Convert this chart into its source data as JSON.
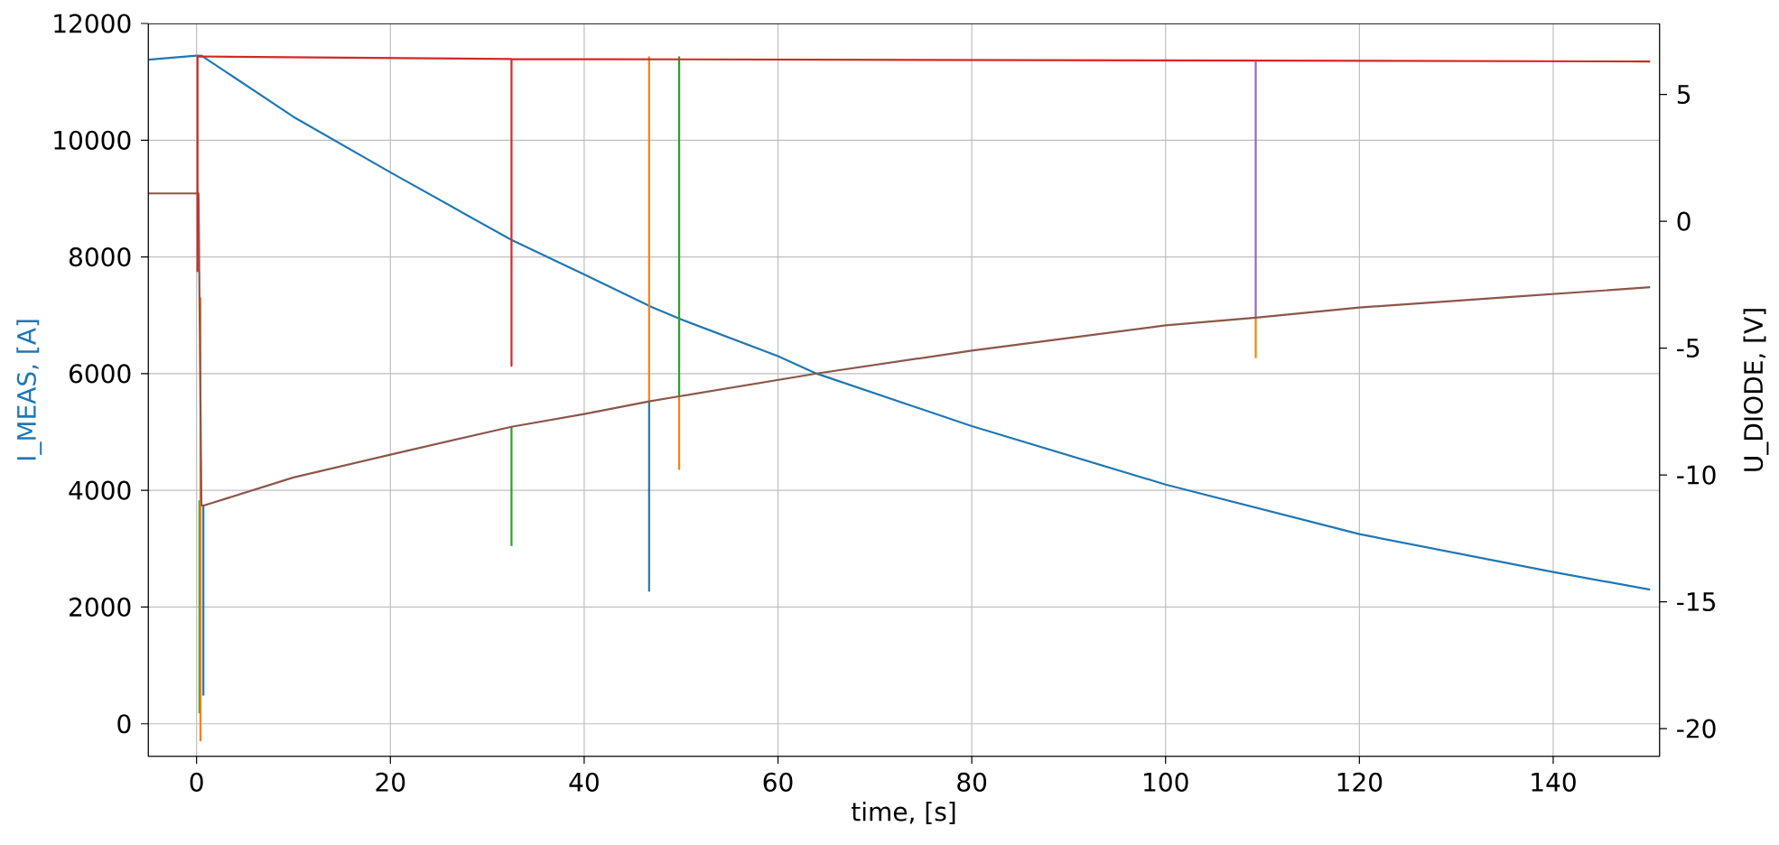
{
  "chart_data": {
    "type": "line",
    "xlabel": "time, [s]",
    "ylabel": "I_MEAS, [A]",
    "y2label": "U_DIODE, [V]",
    "xlim": [
      -5,
      151
    ],
    "ylim": [
      -560,
      12000
    ],
    "y2lim": [
      -21.1,
      7.8
    ],
    "xticks": [
      0,
      20,
      40,
      60,
      80,
      100,
      120,
      140
    ],
    "yticks": [
      0,
      2000,
      4000,
      6000,
      8000,
      10000,
      12000
    ],
    "y2ticks": [
      -20,
      -15,
      -10,
      -5,
      0,
      5
    ],
    "grid": true,
    "marker": "none",
    "line_style": "solid",
    "series": [
      {
        "color": "#1f77b4",
        "x": [
          -5,
          0,
          0.5,
          10,
          20,
          32.5,
          40,
          47,
          50,
          60,
          64,
          80,
          100,
          120,
          140,
          150
        ],
        "values": [
          11380,
          11450,
          11450,
          10400,
          9450,
          8290,
          7700,
          7140,
          6930,
          6300,
          6000,
          5100,
          4100,
          3250,
          2600,
          2300
        ]
      },
      {
        "color": "#2ca02c",
        "axis": "y2",
        "x": [
          0.3,
          0.3
        ],
        "values": [
          -11,
          -19.4
        ]
      },
      {
        "color": "#2ca02c",
        "axis": "y2",
        "x": [
          32.5,
          32.5
        ],
        "values": [
          -8.1,
          -12.8
        ]
      },
      {
        "color": "#2ca02c",
        "axis": "y2",
        "x": [
          49.8,
          49.8
        ],
        "values": [
          6.5,
          -6.9
        ]
      },
      {
        "color": "#ff7f0e",
        "axis": "y2",
        "x": [
          0.4,
          0.4
        ],
        "values": [
          -3,
          -20.5
        ]
      },
      {
        "color": "#ff7f0e",
        "axis": "y2",
        "x": [
          46.7,
          46.7
        ],
        "values": [
          6.5,
          -7.1
        ]
      },
      {
        "color": "#ff7f0e",
        "axis": "y2",
        "x": [
          49.8,
          49.8
        ],
        "values": [
          -6.9,
          -9.8
        ]
      },
      {
        "color": "#ff7f0e",
        "axis": "y2",
        "x": [
          109.3,
          109.3
        ],
        "values": [
          -3.8,
          -5.4
        ]
      },
      {
        "color": "#1f77b4",
        "axis": "y2",
        "x": [
          0.7,
          0.7
        ],
        "values": [
          -11.2,
          -18.7
        ]
      },
      {
        "color": "#1f77b4",
        "axis": "y2",
        "x": [
          46.7,
          46.7
        ],
        "values": [
          -7.1,
          -14.6
        ]
      },
      {
        "color": "#9467bd",
        "axis": "y2",
        "x": [
          109.3,
          109.3
        ],
        "values": [
          6.3,
          -3.8
        ]
      },
      {
        "color": "#8c564b",
        "axis": "y2",
        "x": [
          -5,
          0.2,
          0.5,
          0.8,
          10,
          20,
          32.5,
          40,
          46.7,
          49.8,
          64,
          80,
          100,
          109.3,
          120,
          135,
          150
        ],
        "values": [
          1.1,
          1.1,
          -11.2,
          -11.2,
          -10.1,
          -9.2,
          -8.1,
          -7.6,
          -7.1,
          -6.9,
          -6.0,
          -5.1,
          -4.1,
          -3.8,
          -3.4,
          -3.0,
          -2.6
        ]
      },
      {
        "color": "#d62728",
        "axis": "y2",
        "x": [
          0.1,
          0.1,
          32.5,
          32.5,
          32.5,
          150
        ],
        "values": [
          -2,
          6.5,
          6.4,
          -5.7,
          6.4,
          6.3
        ]
      }
    ]
  }
}
